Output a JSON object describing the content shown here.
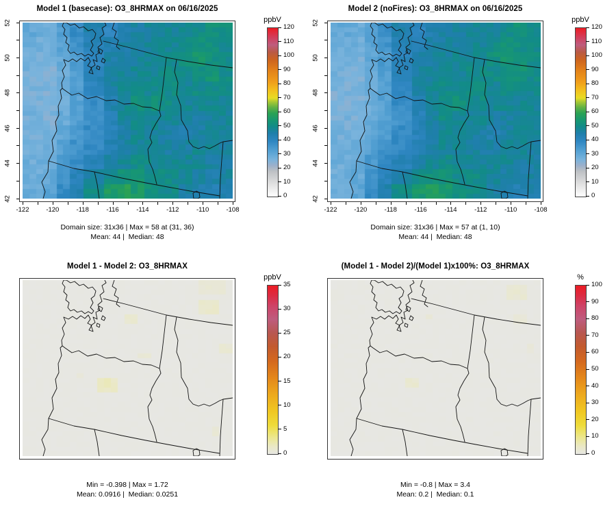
{
  "colors": {
    "background": "#FFFFFF",
    "map_background_diff": "#E7E7E3",
    "palette_main": [
      [
        0,
        "#FFFFFF"
      ],
      [
        0.08,
        "#DEDEDE"
      ],
      [
        0.15,
        "#BDC0C4"
      ],
      [
        0.185,
        "#9BB0CB"
      ],
      [
        0.22,
        "#79B3DC"
      ],
      [
        0.27,
        "#55A1D3"
      ],
      [
        0.33,
        "#2E86C1"
      ],
      [
        0.375,
        "#1F7FAB"
      ],
      [
        0.415,
        "#128B89"
      ],
      [
        0.455,
        "#189870"
      ],
      [
        0.495,
        "#2BA254"
      ],
      [
        0.53,
        "#63B244"
      ],
      [
        0.56,
        "#A3C636"
      ],
      [
        0.585,
        "#E7DC25"
      ],
      [
        0.63,
        "#F3C01E"
      ],
      [
        0.68,
        "#F09E1B"
      ],
      [
        0.75,
        "#E2811A"
      ],
      [
        0.81,
        "#CD641E"
      ],
      [
        0.855,
        "#BA5A42"
      ],
      [
        0.9,
        "#BE5C7E"
      ],
      [
        0.945,
        "#D23E5B"
      ],
      [
        1,
        "#EC1C24"
      ]
    ],
    "palette_diff": [
      [
        0,
        "#E7E7E3"
      ],
      [
        0.045,
        "#EAE8C6"
      ],
      [
        0.1,
        "#ECE78D"
      ],
      [
        0.17,
        "#EEDC3B"
      ],
      [
        0.25,
        "#F0C822"
      ],
      [
        0.35,
        "#EDAA1E"
      ],
      [
        0.45,
        "#E4881B"
      ],
      [
        0.55,
        "#D4691F"
      ],
      [
        0.64,
        "#C25A2F"
      ],
      [
        0.72,
        "#B85851"
      ],
      [
        0.8,
        "#BE5C7E"
      ],
      [
        0.88,
        "#CE4367"
      ],
      [
        0.94,
        "#DC2B43"
      ],
      [
        1,
        "#EC1C24"
      ]
    ]
  },
  "axes": {
    "lon_min": -122,
    "lon_max": -108,
    "lat_min": 42,
    "lat_max": 52,
    "x_labels": [
      -122,
      -120,
      -118,
      -116,
      -114,
      -112,
      -110,
      -108
    ],
    "y_labels": [
      42,
      44,
      46,
      48,
      50,
      52
    ]
  },
  "chart_data": [
    {
      "type": "heatmap",
      "title": "Model 1 (basecase): O3_8HRMAX on 06/16/2025",
      "colorbar": {
        "label": "ppbV",
        "min": 0,
        "max": 120,
        "tick_step": 10
      },
      "grid_cols": 31,
      "grid_rows": 36,
      "stats_line1": "Domain size: 31x36 | Max = 58 at (31, 36)",
      "stats_line2": "Mean: 44 |  Median: 48",
      "stats": {
        "domain": "31x36",
        "max": 58,
        "max_at": [
          31,
          36
        ],
        "mean": 44,
        "median": 48
      },
      "values_approx_ppbv": [
        [
          30,
          29,
          33,
          38,
          44,
          40,
          44,
          46,
          47,
          48,
          48,
          50,
          52,
          51
        ],
        [
          28,
          28,
          31,
          36,
          42,
          43,
          45,
          46,
          47,
          48,
          50,
          52,
          51,
          50
        ],
        [
          27,
          27,
          30,
          34,
          40,
          45,
          46,
          47,
          48,
          49,
          52,
          54,
          52,
          50
        ],
        [
          27,
          26,
          29,
          33,
          42,
          46,
          47,
          48,
          48,
          50,
          50,
          52,
          53,
          50
        ],
        [
          26,
          26,
          28,
          33,
          40,
          46,
          48,
          50,
          49,
          50,
          48,
          50,
          50,
          49
        ],
        [
          26,
          26,
          28,
          32,
          38,
          44,
          48,
          51,
          52,
          50,
          48,
          48,
          48,
          48
        ],
        [
          27,
          26,
          29,
          33,
          36,
          42,
          47,
          50,
          48,
          48,
          46,
          46,
          47,
          48
        ],
        [
          27,
          27,
          30,
          34,
          38,
          41,
          45,
          48,
          48,
          46,
          44,
          46,
          48,
          48
        ],
        [
          28,
          28,
          32,
          36,
          39,
          43,
          46,
          48,
          48,
          46,
          46,
          48,
          48,
          46
        ],
        [
          28,
          29,
          34,
          38,
          42,
          46,
          48,
          50,
          49,
          48,
          48,
          48,
          46,
          46
        ],
        [
          28,
          30,
          36,
          41,
          46,
          50,
          52,
          53,
          50,
          50,
          48,
          46,
          45,
          46
        ],
        [
          29,
          31,
          38,
          44,
          50,
          56,
          58,
          55,
          52,
          50,
          46,
          44,
          43,
          45
        ]
      ]
    },
    {
      "type": "heatmap",
      "title": "Model 2 (noFires): O3_8HRMAX on 06/16/2025",
      "colorbar": {
        "label": "ppbV",
        "min": 0,
        "max": 120,
        "tick_step": 10
      },
      "grid_cols": 31,
      "grid_rows": 36,
      "stats_line1": "Domain size: 31x36 | Max = 57 at (1, 10)",
      "stats_line2": "Mean: 44 |  Median: 48",
      "stats": {
        "domain": "31x36",
        "max": 57,
        "max_at": [
          1,
          10
        ],
        "mean": 44,
        "median": 48
      },
      "values_approx_ppbv": [
        [
          30,
          29,
          33,
          38,
          44,
          40,
          44,
          46,
          47,
          48,
          48,
          50,
          52,
          50
        ],
        [
          28,
          28,
          31,
          36,
          42,
          43,
          45,
          46,
          47,
          48,
          50,
          52,
          51,
          50
        ],
        [
          27,
          27,
          30,
          34,
          40,
          45,
          46,
          47,
          48,
          49,
          52,
          54,
          52,
          50
        ],
        [
          27,
          26,
          29,
          33,
          42,
          46,
          47,
          48,
          48,
          50,
          50,
          52,
          53,
          50
        ],
        [
          26,
          26,
          28,
          33,
          40,
          46,
          48,
          50,
          49,
          50,
          48,
          50,
          50,
          49
        ],
        [
          26,
          26,
          28,
          32,
          38,
          44,
          48,
          51,
          52,
          50,
          48,
          48,
          48,
          48
        ],
        [
          27,
          26,
          29,
          33,
          36,
          42,
          47,
          50,
          48,
          48,
          46,
          46,
          47,
          48
        ],
        [
          27,
          27,
          30,
          34,
          38,
          41,
          45,
          48,
          48,
          46,
          44,
          46,
          48,
          48
        ],
        [
          28,
          28,
          32,
          36,
          39,
          43,
          46,
          48,
          48,
          46,
          46,
          48,
          48,
          46
        ],
        [
          28,
          29,
          34,
          38,
          42,
          46,
          48,
          50,
          49,
          48,
          48,
          48,
          46,
          46
        ],
        [
          28,
          30,
          36,
          41,
          46,
          50,
          52,
          53,
          50,
          50,
          48,
          46,
          45,
          46
        ],
        [
          29,
          31,
          38,
          44,
          50,
          55,
          57,
          55,
          52,
          50,
          46,
          44,
          43,
          45
        ]
      ]
    },
    {
      "type": "heatmap",
      "title": "Model 1 - Model 2: O3_8HRMAX",
      "colorbar": {
        "label": "ppbV",
        "min": 0,
        "max": 35,
        "tick_step": 5
      },
      "grid_cols": 31,
      "grid_rows": 36,
      "stats_line1": "Min = -0.398 | Max = 1.72",
      "stats_line2": "Mean: 0.0916 |  Median: 0.0251",
      "stats": {
        "min": -0.398,
        "max": 1.72,
        "mean": 0.0916,
        "median": 0.0251
      },
      "background_value": 0.05,
      "patches": [
        {
          "col": 26,
          "row": 0,
          "w": 4,
          "h": 3,
          "value": 0.8
        },
        {
          "col": 26,
          "row": 4,
          "w": 3,
          "h": 3,
          "value": 1.2
        },
        {
          "col": 15,
          "row": 7,
          "w": 2,
          "h": 2,
          "value": 1.0
        },
        {
          "col": 17,
          "row": 15,
          "w": 2,
          "h": 1,
          "value": 0.7
        },
        {
          "col": 11,
          "row": 20,
          "w": 3,
          "h": 3,
          "value": 1.7
        },
        {
          "col": 8,
          "row": 19,
          "w": 1,
          "h": 1,
          "value": 0.7
        },
        {
          "col": 29,
          "row": 13,
          "w": 2,
          "h": 2,
          "value": 0.8
        },
        {
          "col": 28,
          "row": 30,
          "w": 1,
          "h": 2,
          "value": 0.8
        }
      ]
    },
    {
      "type": "heatmap",
      "title": "(Model 1 - Model 2)/(Model 1)x100%: O3_8HRMAX",
      "colorbar": {
        "label": "%",
        "min": 0,
        "max": 100,
        "tick_step": 10
      },
      "grid_cols": 31,
      "grid_rows": 36,
      "stats_line1": "Min = -0.8 | Max = 3.4",
      "stats_line2": "Mean: 0.2 |  Median: 0.1",
      "stats": {
        "min": -0.8,
        "max": 3.4,
        "mean": 0.2,
        "median": 0.1
      },
      "background_value": 0.15,
      "patches": [
        {
          "col": 26,
          "row": 1,
          "w": 3,
          "h": 3,
          "value": 2.6
        },
        {
          "col": 27,
          "row": 7,
          "w": 2,
          "h": 2,
          "value": 1.8
        },
        {
          "col": 14,
          "row": 7,
          "w": 1,
          "h": 1,
          "value": 1.6
        },
        {
          "col": 11,
          "row": 20,
          "w": 2,
          "h": 2,
          "value": 3.0
        },
        {
          "col": 29,
          "row": 13,
          "w": 1,
          "h": 2,
          "value": 1.5
        }
      ]
    }
  ],
  "render": [
    {
      "panel": 0,
      "palette": "palette_main",
      "kind": "grid",
      "axes": true,
      "seed": 11,
      "noise": 2.2
    },
    {
      "panel": 1,
      "palette": "palette_main",
      "kind": "grid",
      "axes": true,
      "seed": 29,
      "noise": 2.2
    },
    {
      "panel": 2,
      "palette": "palette_diff",
      "kind": "flat",
      "axes": false,
      "seed": 3,
      "noise": 0.08
    },
    {
      "panel": 3,
      "palette": "palette_diff",
      "kind": "flat",
      "axes": false,
      "seed": 5,
      "noise": 0.25
    }
  ]
}
